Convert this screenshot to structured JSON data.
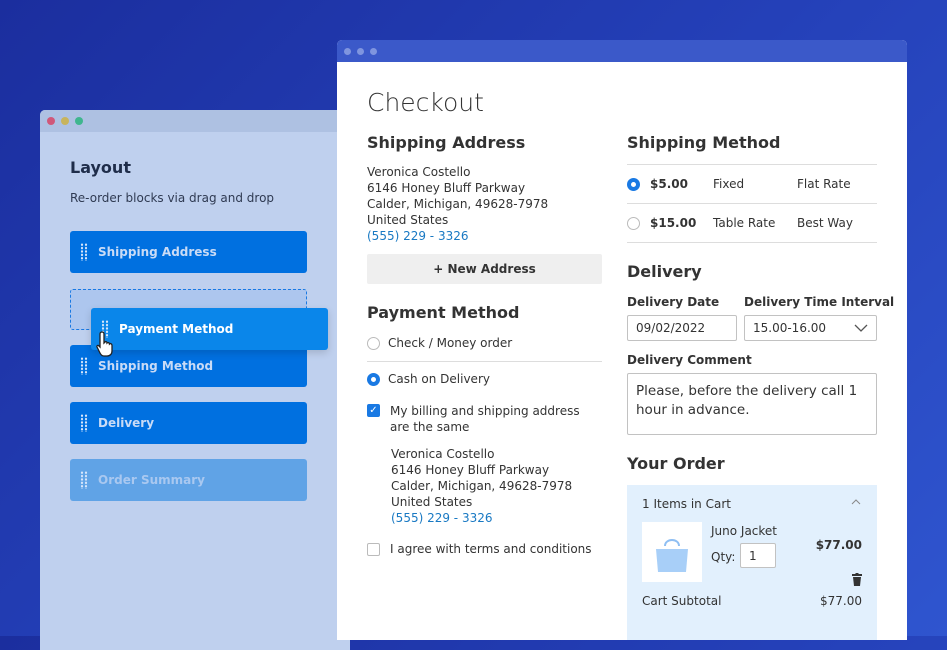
{
  "layout_panel": {
    "title": "Layout",
    "subtitle": "Re-order blocks via drag and drop",
    "blocks": [
      "Shipping Address",
      "Shipping Method",
      "Delivery",
      "Order Summary"
    ],
    "dragging": "Payment Method"
  },
  "checkout": {
    "title": "Checkout",
    "shipping_address": {
      "heading": "Shipping Address",
      "name": "Veronica Costello",
      "street": "6146 Honey Bluff Parkway",
      "city": "Calder, Michigan, 49628-7978",
      "country": "United States",
      "phone": "(555) 229 - 3326",
      "new_address": "+ New Address"
    },
    "payment": {
      "heading": "Payment Method",
      "options": [
        "Check / Money order",
        "Cash on Delivery"
      ],
      "selected": 1,
      "same_address_label": "My billing and shipping address are the same",
      "same_address_checked": true,
      "billing": {
        "name": "Veronica Costello",
        "street": "6146 Honey Bluff Parkway",
        "city": "Calder, Michigan, 49628-7978",
        "country": "United States",
        "phone": "(555) 229 - 3326"
      },
      "terms": "I agree with terms and conditions",
      "terms_checked": false
    },
    "shipping_method": {
      "heading": "Shipping Method",
      "rates": [
        {
          "price": "$5.00",
          "method": "Fixed",
          "carrier": "Flat Rate",
          "selected": true
        },
        {
          "price": "$15.00",
          "method": "Table Rate",
          "carrier": "Best Way",
          "selected": false
        }
      ]
    },
    "delivery": {
      "heading": "Delivery",
      "date_label": "Delivery Date",
      "date": "09/02/2022",
      "interval_label": "Delivery Time Interval",
      "interval": "15.00-16.00",
      "comment_label": "Delivery Comment",
      "comment": "Please, before the delivery call 1 hour in advance."
    },
    "order": {
      "heading": "Your Order",
      "items_count": "1 Items in Cart",
      "item_name": "Juno Jacket",
      "qty_label": "Qty:",
      "qty": "1",
      "price": "$77.00",
      "subtotal_label": "Cart Subtotal",
      "subtotal": "$77.00"
    }
  },
  "colors": {
    "accent": "#1979e3",
    "block": "#0070e0",
    "background": "#2440b8"
  }
}
